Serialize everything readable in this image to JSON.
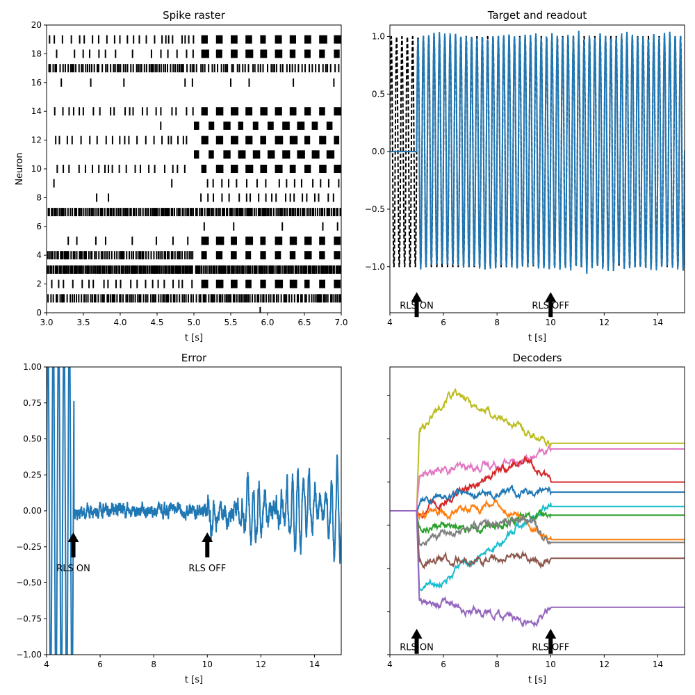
{
  "chart_data": [
    {
      "id": "raster",
      "type": "scatter",
      "title": "Spike raster",
      "xlabel": "t [s]",
      "ylabel": "Neuron",
      "xlim": [
        3.0,
        7.0
      ],
      "ylim": [
        0,
        20
      ],
      "xticks": [
        3.0,
        3.5,
        4.0,
        4.5,
        5.0,
        5.5,
        6.0,
        6.5,
        7.0
      ],
      "xticklabels": [
        "3.0",
        "3.5",
        "4.0",
        "4.5",
        "5.0",
        "5.5",
        "6.0",
        "6.5",
        "7.0"
      ],
      "yticks": [
        0,
        2,
        4,
        6,
        8,
        10,
        12,
        14,
        16,
        18,
        20
      ],
      "yticklabels": [
        "0",
        "2",
        "4",
        "6",
        "8",
        "10",
        "12",
        "14",
        "16",
        "18",
        "20"
      ],
      "marker": "vertical tick",
      "color": "#000000",
      "neurons": [
        {
          "neuron": 1,
          "rate_before": 36,
          "rate_after_bursts": 40
        },
        {
          "neuron": 2,
          "rate_before": 10,
          "burst_period": 0.2
        },
        {
          "neuron": 3,
          "rate_before": 60,
          "rate_after": 55
        },
        {
          "neuron": 4,
          "rate_before": 40,
          "burst_period": 0.2
        },
        {
          "neuron": 5,
          "rate_before": 4,
          "burst_period": 0.2
        },
        {
          "neuron": 6,
          "spikes": [
            5.14,
            5.54,
            6.2,
            6.75,
            6.95
          ]
        },
        {
          "neuron": 7,
          "rate_before": 45,
          "rate_after": 45
        },
        {
          "neuron": 8,
          "spikes": [
            3.68,
            3.84
          ],
          "rate_after": 10
        },
        {
          "neuron": 9,
          "spikes": [
            3.1,
            4.7
          ],
          "rate_after": 8
        },
        {
          "neuron": 10,
          "rate_before": 10,
          "burst_period": 0.2
        },
        {
          "neuron": 11,
          "burst_start": 5.0,
          "burst_period": 0.2
        },
        {
          "neuron": 12,
          "rate_before": 12,
          "burst_period": 0.2
        },
        {
          "neuron": 13,
          "spikes": [
            4.55
          ],
          "burst_start": 5.0,
          "burst_period": 0.2
        },
        {
          "neuron": 14,
          "rate_before": 10,
          "burst_period": 0.2
        },
        {
          "neuron": 16,
          "spikes": [
            3.2,
            3.6,
            4.05,
            4.88,
            4.98,
            5.5,
            5.75,
            6.35,
            6.9
          ]
        },
        {
          "neuron": 17,
          "rate_before": 30,
          "rate_after": 25
        },
        {
          "neuron": 18,
          "rate_before": 6,
          "burst_period": 0.2
        },
        {
          "neuron": 19,
          "rate_before": 12,
          "burst_period": 0.2
        }
      ]
    },
    {
      "id": "target",
      "type": "line",
      "title": "Target and readout",
      "xlabel": "t [s]",
      "ylabel": "",
      "xlim": [
        4,
        15
      ],
      "ylim": [
        -1.4,
        1.1
      ],
      "xticks": [
        4,
        6,
        8,
        10,
        12,
        14
      ],
      "xticklabels": [
        "4",
        "6",
        "8",
        "10",
        "12",
        "14"
      ],
      "yticks": [
        -1.0,
        -0.5,
        0.0,
        0.5,
        1.0
      ],
      "yticklabels": [
        "−1.0",
        "−0.5",
        "0.0",
        "0.5",
        "1.0"
      ],
      "series": [
        {
          "role": "target",
          "style": "dashed",
          "color": "#000000",
          "amplitude": 1.0,
          "frequency_hz": 5.0,
          "x_range": [
            4,
            15
          ]
        },
        {
          "role": "readout",
          "style": "solid",
          "color": "#1f77b4",
          "before_value": 0.0,
          "amplitude": 1.0,
          "frequency_hz": 5.0,
          "x_start": 5.0,
          "x_end": 15
        }
      ],
      "annotations": [
        {
          "text": "RLS ON",
          "x": 5.0,
          "y_arrow_tip": -1.22,
          "y_text": -1.34
        },
        {
          "text": "RLS OFF",
          "x": 10.0,
          "y_arrow_tip": -1.22,
          "y_text": -1.34
        }
      ]
    },
    {
      "id": "error",
      "type": "line",
      "title": "Error",
      "xlabel": "t [s]",
      "ylabel": "",
      "xlim": [
        4,
        15
      ],
      "ylim": [
        -1.0,
        1.0
      ],
      "xticks": [
        4,
        6,
        8,
        10,
        12,
        14
      ],
      "xticklabels": [
        "4",
        "6",
        "8",
        "10",
        "12",
        "14"
      ],
      "yticks": [
        -1.0,
        -0.75,
        -0.5,
        -0.25,
        0.0,
        0.25,
        0.5,
        0.75,
        1.0
      ],
      "yticklabels": [
        "−1.00",
        "−0.75",
        "−0.50",
        "−0.25",
        "0.00",
        "0.25",
        "0.50",
        "0.75",
        "1.00"
      ],
      "color": "#1f77b4",
      "phases": [
        {
          "x_range": [
            4,
            5
          ],
          "behavior": "full oscillation",
          "amplitude": 1.0
        },
        {
          "x_range": [
            5,
            10
          ],
          "behavior": "small noise",
          "amplitude": 0.05
        },
        {
          "x_range": [
            10,
            15
          ],
          "behavior": "growing oscillation",
          "amplitude_start": 0.08,
          "amplitude_end": 0.4
        }
      ],
      "annotations": [
        {
          "text": "RLS ON",
          "x": 5.0,
          "y_arrow_tip": -0.15,
          "y_text": -0.4
        },
        {
          "text": "RLS OFF",
          "x": 10.0,
          "y_arrow_tip": -0.15,
          "y_text": -0.4
        }
      ]
    },
    {
      "id": "decoders",
      "type": "line",
      "title": "Decoders",
      "xlabel": "t [s]",
      "ylabel": "",
      "xlim": [
        4,
        15
      ],
      "ylim": [
        -1.0,
        1.0
      ],
      "xticks": [
        4,
        6,
        8,
        10,
        12,
        14
      ],
      "xticklabels": [
        "4",
        "6",
        "8",
        "10",
        "12",
        "14"
      ],
      "yticks": [
        -1.0,
        -0.7,
        -0.4,
        -0.1,
        0.2,
        0.5,
        0.8
      ],
      "yticklabels": [],
      "start_value": 0.0,
      "series": [
        {
          "color": "#bcbd22",
          "initial_jump": 0.55,
          "peak": 0.82,
          "peak_t": 6.2,
          "final": 0.47
        },
        {
          "color": "#e377c2",
          "initial_jump": 0.25,
          "peak": 0.37,
          "peak_t": 9.5,
          "final": 0.43
        },
        {
          "color": "#d62728",
          "initial_jump": -0.02,
          "peak": 0.36,
          "peak_t": 9.0,
          "final": 0.2
        },
        {
          "color": "#1f77b4",
          "initial_jump": 0.05,
          "peak": 0.13,
          "peak_t": 6.5,
          "final": 0.13
        },
        {
          "color": "#17becf",
          "initial_jump": -0.55,
          "peak": -0.48,
          "peak_t": 6.0,
          "final": 0.03
        },
        {
          "color": "#2ca02c",
          "initial_jump": -0.1,
          "peak": -0.12,
          "peak_t": 7.0,
          "final": -0.03
        },
        {
          "color": "#ff7f0e",
          "initial_jump": -0.05,
          "peak": 0.05,
          "peak_t": 8.0,
          "final": -0.2
        },
        {
          "color": "#7f7f7f",
          "initial_jump": -0.2,
          "peak": -0.05,
          "peak_t": 9.0,
          "final": -0.22
        },
        {
          "color": "#8c564b",
          "initial_jump": -0.35,
          "peak": -0.34,
          "peak_t": 7.0,
          "final": -0.33
        },
        {
          "color": "#9467bd",
          "initial_jump": -0.62,
          "peak": -0.78,
          "peak_t": 9.3,
          "final": -0.67
        }
      ],
      "annotations": [
        {
          "text": "RLS ON",
          "x": 5.0,
          "y_arrow_tip": -0.82,
          "y_text": -0.95
        },
        {
          "text": "RLS OFF",
          "x": 10.0,
          "y_arrow_tip": -0.82,
          "y_text": -0.95
        }
      ]
    }
  ]
}
